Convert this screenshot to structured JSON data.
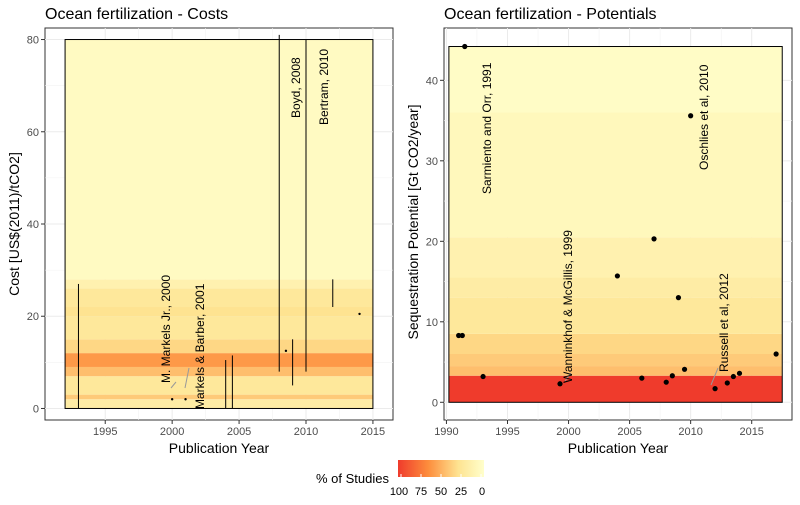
{
  "legend": {
    "title": "% of Studies",
    "labels": [
      "100",
      "75",
      "50",
      "25",
      "0"
    ],
    "colors": {
      "high": "#ef3b2c",
      "mid": "#fd8d3c",
      "low": "#fee391",
      "zero": "#ffffcc"
    }
  },
  "chart_data": [
    {
      "type": "range-bars",
      "title": "Ocean fertilization - Costs",
      "xlabel": "Publication Year",
      "ylabel": "Cost [US$(2011)/tCO2]",
      "xlim": [
        1990.5,
        2016.5
      ],
      "ylim": [
        -2.5,
        82.5
      ],
      "xticks": [
        1995,
        2000,
        2005,
        2010,
        2015
      ],
      "yticks": [
        0,
        20,
        40,
        60,
        80
      ],
      "grid": true,
      "shaded_region": {
        "x": [
          1992,
          2015
        ],
        "y": [
          0,
          80
        ]
      },
      "bands": [
        {
          "y0": 0,
          "y1": 2,
          "share": 20
        },
        {
          "y0": 2,
          "y1": 3,
          "share": 40
        },
        {
          "y0": 3,
          "y1": 7,
          "share": 25
        },
        {
          "y0": 7,
          "y1": 9,
          "share": 45
        },
        {
          "y0": 9,
          "y1": 12,
          "share": 60
        },
        {
          "y0": 12,
          "y1": 15,
          "share": 35
        },
        {
          "y0": 15,
          "y1": 20,
          "share": 25
        },
        {
          "y0": 20,
          "y1": 22,
          "share": 30
        },
        {
          "y0": 22,
          "y1": 26,
          "share": 25
        },
        {
          "y0": 26,
          "y1": 28,
          "share": 15
        },
        {
          "y0": 28,
          "y1": 80,
          "share": 5
        }
      ],
      "ranges": [
        {
          "x": 1993,
          "low": 0,
          "high": 27
        },
        {
          "x": 2004,
          "low": 0,
          "high": 10.5
        },
        {
          "x": 2004.5,
          "low": 0,
          "high": 11.5
        },
        {
          "x": 2008,
          "low": 8,
          "high": 81
        },
        {
          "x": 2009,
          "low": 5,
          "high": 15
        },
        {
          "x": 2010,
          "low": 8,
          "high": 80
        },
        {
          "x": 2012,
          "low": 22,
          "high": 28
        }
      ],
      "points": [
        {
          "x": 2000,
          "y": 2
        },
        {
          "x": 2001,
          "y": 2
        },
        {
          "x": 2008.5,
          "y": 12.5
        },
        {
          "x": 2014,
          "y": 20.5
        }
      ],
      "annotations": [
        {
          "label": "M. Markels Jr., 2000"
        },
        {
          "label": "Markels & Barber, 2001"
        },
        {
          "label": "Boyd, 2008"
        },
        {
          "label": "Bertram, 2010"
        }
      ]
    },
    {
      "type": "scatter",
      "title": "Ocean fertilization - Potentials",
      "xlabel": "Publication Year",
      "ylabel": "Sequestration Potential [Gt CO2/year]",
      "xlim": [
        1989.8,
        2018.3
      ],
      "ylim": [
        -2.2,
        46.5
      ],
      "xticks": [
        1990,
        1995,
        2000,
        2005,
        2010,
        2015
      ],
      "yticks": [
        0,
        10,
        20,
        30,
        40
      ],
      "grid": true,
      "shaded_region": {
        "x": [
          1990.2,
          2017.5
        ],
        "y": [
          0,
          44.2
        ]
      },
      "bands": [
        {
          "y0": 0,
          "y1": 3.3,
          "share": 100
        },
        {
          "y0": 3.3,
          "y1": 4.5,
          "share": 45
        },
        {
          "y0": 4.5,
          "y1": 6,
          "share": 40
        },
        {
          "y0": 6,
          "y1": 8.5,
          "share": 35
        },
        {
          "y0": 8.5,
          "y1": 13,
          "share": 25
        },
        {
          "y0": 13,
          "y1": 15.5,
          "share": 20
        },
        {
          "y0": 15.5,
          "y1": 20.5,
          "share": 15
        },
        {
          "y0": 20.5,
          "y1": 36,
          "share": 8
        },
        {
          "y0": 36,
          "y1": 44.2,
          "share": 3
        }
      ],
      "points": [
        {
          "x": 1991,
          "y": 8.3
        },
        {
          "x": 1991.3,
          "y": 8.3
        },
        {
          "x": 1991.5,
          "y": 44.2
        },
        {
          "x": 1993,
          "y": 3.2
        },
        {
          "x": 1999.3,
          "y": 2.3
        },
        {
          "x": 2004,
          "y": 15.7
        },
        {
          "x": 2006,
          "y": 3
        },
        {
          "x": 2007,
          "y": 20.3
        },
        {
          "x": 2008,
          "y": 2.5
        },
        {
          "x": 2008.5,
          "y": 3.3
        },
        {
          "x": 2009,
          "y": 13
        },
        {
          "x": 2009.5,
          "y": 4.1
        },
        {
          "x": 2010,
          "y": 35.6
        },
        {
          "x": 2012,
          "y": 1.7
        },
        {
          "x": 2013,
          "y": 2.4
        },
        {
          "x": 2013.5,
          "y": 3.2
        },
        {
          "x": 2014,
          "y": 3.6
        },
        {
          "x": 2017,
          "y": 6
        }
      ],
      "annotations": [
        {
          "label": "Sarmiento and Orr, 1991"
        },
        {
          "label": "Oschlies et al, 2010"
        },
        {
          "label": "Wanninkhof & McGillis, 1999"
        },
        {
          "label": "Russell et al, 2012"
        }
      ]
    }
  ]
}
